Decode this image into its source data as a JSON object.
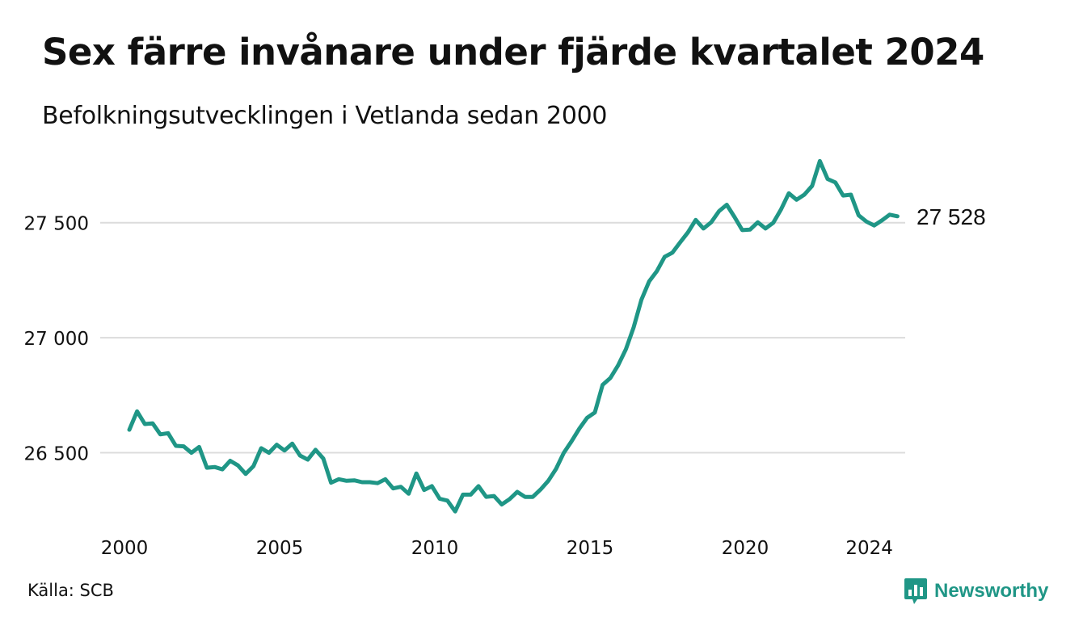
{
  "title": "Sex färre invånare under fjärde kvartalet 2024",
  "subtitle": "Befolkningsutvecklingen i Vetlanda sedan 2000",
  "source": "Källa: SCB",
  "brand": {
    "name": "Newsworthy",
    "icon": "newsworthy-bar-chart-logo",
    "color": "#1f9686"
  },
  "chart_data": {
    "type": "line",
    "x_unit": "year (quarterly)",
    "y_unit": "invånare",
    "xlim": [
      2000,
      2025
    ],
    "ylim": [
      26200,
      27780
    ],
    "grid": true,
    "x_ticks": [
      {
        "value": 2000,
        "label": "2000"
      },
      {
        "value": 2005,
        "label": "2005"
      },
      {
        "value": 2010,
        "label": "2010"
      },
      {
        "value": 2015,
        "label": "2015"
      },
      {
        "value": 2020,
        "label": "2020"
      },
      {
        "value": 2024,
        "label": "2024"
      }
    ],
    "y_ticks": [
      {
        "value": 26500,
        "label": "26 500"
      },
      {
        "value": 27000,
        "label": "27 000"
      },
      {
        "value": 27500,
        "label": "27 500"
      }
    ],
    "end_label": "27 528",
    "series": [
      {
        "color": "#1f9686",
        "x": [
          2000.0,
          2000.25,
          2000.5,
          2000.75,
          2001.0,
          2001.25,
          2001.5,
          2001.75,
          2002.0,
          2002.25,
          2002.5,
          2002.75,
          2003.0,
          2003.25,
          2003.5,
          2003.75,
          2004.0,
          2004.25,
          2004.5,
          2004.75,
          2005.0,
          2005.25,
          2005.5,
          2005.75,
          2006.0,
          2006.25,
          2006.5,
          2006.75,
          2007.0,
          2007.25,
          2007.5,
          2007.75,
          2008.0,
          2008.25,
          2008.5,
          2008.75,
          2009.0,
          2009.25,
          2009.5,
          2009.75,
          2010.0,
          2010.25,
          2010.5,
          2010.75,
          2011.0,
          2011.25,
          2011.5,
          2011.75,
          2012.0,
          2012.25,
          2012.5,
          2012.75,
          2013.0,
          2013.25,
          2013.5,
          2013.75,
          2014.0,
          2014.25,
          2014.5,
          2014.75,
          2015.0,
          2015.25,
          2015.5,
          2015.75,
          2016.0,
          2016.25,
          2016.5,
          2016.75,
          2017.0,
          2017.25,
          2017.5,
          2017.75,
          2018.0,
          2018.25,
          2018.5,
          2018.75,
          2019.0,
          2019.25,
          2019.5,
          2019.75,
          2020.0,
          2020.25,
          2020.5,
          2020.75,
          2021.0,
          2021.25,
          2021.5,
          2021.75,
          2022.0,
          2022.25,
          2022.5,
          2022.75,
          2023.0,
          2023.25,
          2023.5,
          2023.75,
          2024.0,
          2024.25,
          2024.5,
          2024.75
        ],
        "y": [
          26600,
          26680,
          26625,
          26628,
          26580,
          26585,
          26530,
          26528,
          26500,
          26525,
          26435,
          26438,
          26428,
          26465,
          26445,
          26408,
          26442,
          26520,
          26500,
          26535,
          26510,
          26540,
          26488,
          26470,
          26513,
          26475,
          26370,
          26385,
          26378,
          26380,
          26372,
          26372,
          26368,
          26385,
          26345,
          26352,
          26322,
          26410,
          26338,
          26355,
          26300,
          26292,
          26245,
          26318,
          26318,
          26355,
          26308,
          26312,
          26275,
          26298,
          26330,
          26308,
          26308,
          26340,
          26378,
          26430,
          26500,
          26550,
          26605,
          26652,
          26675,
          26795,
          26825,
          26880,
          26950,
          27045,
          27165,
          27245,
          27290,
          27352,
          27370,
          27415,
          27458,
          27512,
          27475,
          27502,
          27550,
          27578,
          27525,
          27468,
          27470,
          27502,
          27475,
          27500,
          27558,
          27628,
          27600,
          27622,
          27660,
          27768,
          27690,
          27675,
          27618,
          27622,
          27532,
          27505,
          27488,
          27510,
          27535,
          27528
        ]
      }
    ]
  }
}
